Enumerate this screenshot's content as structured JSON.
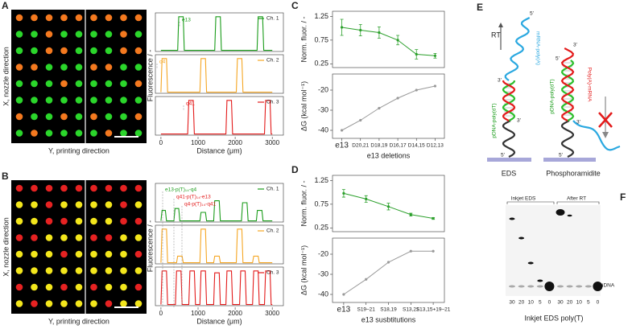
{
  "chart_data": [
    {
      "type": "line",
      "panel": "A",
      "image_ylabel": "X, nozzle direction",
      "image_xlabel": "Y, printing direction",
      "dot_colors": [
        "#2bd62b",
        "#f4791f"
      ],
      "ylabel": "Fluorescence / -",
      "xlabel": "Distance (μm)",
      "xlim": [
        -150,
        3300
      ],
      "xticks": [
        0,
        1000,
        2000,
        3000
      ],
      "ylim": [
        0,
        1
      ],
      "annotations": [
        "e13",
        "q4",
        "q41"
      ],
      "series": [
        {
          "name": "Ch. 1",
          "color": "#1a9c1a",
          "x": [
            0,
            450,
            480,
            600,
            630,
            1450,
            1480,
            1600,
            1630,
            2590,
            2620,
            2740,
            2770,
            3000
          ],
          "values": [
            0.03,
            0.03,
            0.9,
            0.9,
            0.03,
            0.03,
            0.9,
            0.9,
            0.03,
            0.03,
            0.9,
            0.9,
            0.03,
            0.03
          ]
        },
        {
          "name": "Ch. 2",
          "color": "#f5a623",
          "x": [
            0,
            30,
            150,
            180,
            1050,
            1080,
            1200,
            1230,
            2030,
            2060,
            2180,
            2210,
            3000
          ],
          "values": [
            0.03,
            0.9,
            0.9,
            0.03,
            0.03,
            0.9,
            0.9,
            0.03,
            0.03,
            0.9,
            0.9,
            0.03,
            0.03
          ]
        },
        {
          "name": "Ch. 3",
          "color": "#e31a1a",
          "x": [
            0,
            720,
            750,
            870,
            900,
            1750,
            1780,
            1900,
            1930,
            2790,
            2820,
            2940,
            2970,
            3000
          ],
          "values": [
            0.03,
            0.03,
            0.9,
            0.9,
            0.03,
            0.03,
            0.9,
            0.9,
            0.03,
            0.03,
            0.9,
            0.9,
            0.03,
            0.03
          ]
        }
      ]
    },
    {
      "type": "line",
      "panel": "B",
      "image_ylabel": "X, nozzle direction",
      "image_xlabel": "Y, printing direction",
      "dot_colors": [
        "#f3e61c",
        "#e62222"
      ],
      "ylabel": "Fluorescence / -",
      "xlabel": "Distance (μm)",
      "xlim": [
        -150,
        3300
      ],
      "xticks": [
        0,
        1000,
        2000,
        3000
      ],
      "ylim": [
        0,
        1
      ],
      "annotations": [
        "e13-p(T)₁₄-q4",
        "q41-p(T)₁₄-e13",
        "q4-p(T)₁₄-q41"
      ],
      "series": [
        {
          "name": "Ch. 1",
          "color": "#1a9c1a",
          "x": [
            0,
            30,
            120,
            150,
            350,
            380,
            480,
            510,
            1050,
            1080,
            1200,
            1230,
            1420,
            1450,
            1570,
            1600,
            2170,
            2200,
            2320,
            2350,
            2570,
            2600,
            2720,
            2750,
            3000
          ],
          "values": [
            0.03,
            0.3,
            0.3,
            0.03,
            0.03,
            0.35,
            0.35,
            0.03,
            0.03,
            0.25,
            0.25,
            0.03,
            0.03,
            0.55,
            0.55,
            0.03,
            0.03,
            0.5,
            0.5,
            0.03,
            0.03,
            0.3,
            0.3,
            0.03,
            0.03
          ]
        },
        {
          "name": "Ch. 2",
          "color": "#f5a623",
          "x": [
            0,
            30,
            150,
            180,
            420,
            450,
            570,
            600,
            1050,
            1080,
            1200,
            1230,
            1420,
            1450,
            1570,
            1600,
            2030,
            2060,
            2180,
            2210,
            2470,
            2500,
            2620,
            2650,
            3000
          ],
          "values": [
            0.03,
            0.9,
            0.9,
            0.03,
            0.03,
            0.2,
            0.2,
            0.03,
            0.03,
            0.9,
            0.9,
            0.03,
            0.03,
            0.2,
            0.2,
            0.03,
            0.03,
            0.9,
            0.9,
            0.03,
            0.03,
            0.2,
            0.2,
            0.03,
            0.03
          ]
        },
        {
          "name": "Ch. 3",
          "color": "#e31a1a",
          "x": [
            0,
            30,
            150,
            180,
            390,
            420,
            540,
            570,
            750,
            780,
            900,
            930,
            1050,
            1080,
            1200,
            1230,
            1420,
            1450,
            1570,
            1600,
            1750,
            1780,
            1900,
            1930,
            2120,
            2150,
            2270,
            2300,
            2470,
            2500,
            2620,
            2650,
            2790,
            2820,
            2940,
            2970,
            3000
          ],
          "values": [
            0.03,
            0.9,
            0.9,
            0.03,
            0.03,
            0.9,
            0.9,
            0.03,
            0.03,
            0.9,
            0.9,
            0.03,
            0.03,
            0.9,
            0.9,
            0.03,
            0.03,
            0.85,
            0.85,
            0.03,
            0.03,
            0.9,
            0.9,
            0.03,
            0.03,
            0.9,
            0.9,
            0.03,
            0.03,
            0.9,
            0.9,
            0.03,
            0.03,
            0.9,
            0.9,
            0.03,
            0.03
          ]
        }
      ]
    },
    {
      "type": "errorline",
      "panel": "C",
      "xlabel": "e13 deletions",
      "categories": [
        "e13",
        "D20,21",
        "D18,19",
        "D16,17",
        "D14,15",
        "D12,13"
      ],
      "subplots": [
        {
          "ylabel": "Norm. fluor. / -",
          "ylim": [
            0.17,
            1.36
          ],
          "yticks": [
            0.25,
            0.75,
            1.25
          ],
          "color": "#2ca02c",
          "values": [
            1.02,
            0.96,
            0.91,
            0.75,
            0.45,
            0.42
          ],
          "errors": [
            0.17,
            0.12,
            0.12,
            0.1,
            0.1,
            0.05
          ]
        },
        {
          "ylabel": "ΔG (kcal mol⁻¹)",
          "ylim": [
            -44,
            -12
          ],
          "yticks": [
            -40,
            -30,
            -20
          ],
          "color": "#999999",
          "values": [
            -40,
            -35,
            -29,
            -24,
            -20,
            -18
          ]
        }
      ]
    },
    {
      "type": "errorline",
      "panel": "D",
      "xlabel": "e13 susbtitutions",
      "categories": [
        "e13",
        "S19–21",
        "S18,19",
        "S13,21",
        "S13,15+19–21"
      ],
      "subplots": [
        {
          "ylabel": "Norm. fluor. / -",
          "ylim": [
            0.17,
            1.36
          ],
          "yticks": [
            0.25,
            0.75,
            1.25
          ],
          "color": "#2ca02c",
          "values": [
            0.98,
            0.86,
            0.7,
            0.53,
            0.45
          ],
          "errors": [
            0.08,
            0.07,
            0.07,
            0.03,
            0.02
          ]
        },
        {
          "ylabel": "ΔG (kcal mol⁻¹)",
          "ylim": [
            -44,
            -12
          ],
          "yticks": [
            -40,
            -30,
            -20
          ],
          "color": "#999999",
          "values": [
            -40,
            -32.5,
            -24,
            -18.5,
            -18.5
          ]
        }
      ]
    }
  ],
  "diagram": {
    "panel": "E",
    "rt": "RT",
    "left_strand_top": "mRNA-poly(A)",
    "left_strand_bottom": "pDNA-poly(dT)",
    "right_strand_top": "Poly(A)-mRNA",
    "right_strand_bottom": "pDNA-poly(dT)",
    "left_caption": "EDS",
    "right_caption": "Phosphoramidite",
    "ends": [
      "5'",
      "3'",
      "3'",
      "5'",
      "5'",
      "3'",
      "3'",
      "5'"
    ]
  },
  "gel": {
    "panel": "F",
    "groups": [
      "Inkjet EDS",
      "After RT"
    ],
    "lanes": [
      30,
      20,
      10,
      5,
      0,
      30,
      20,
      10,
      5,
      0
    ],
    "band_label": "iDNA",
    "xlabel": "Inkjet EDS poly(T)"
  }
}
